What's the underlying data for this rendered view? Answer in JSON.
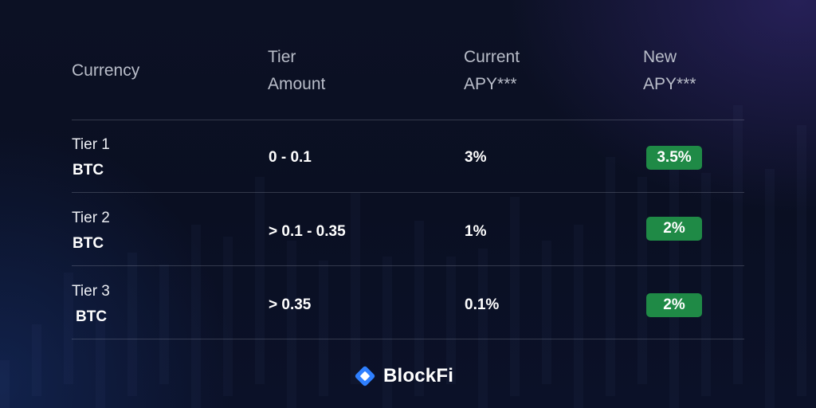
{
  "headers": {
    "currency": "Currency",
    "tier_amount_line1": "Tier",
    "tier_amount_line2": "Amount",
    "current_apy_line1": "Current",
    "current_apy_line2": "APY***",
    "new_apy_line1": "New",
    "new_apy_line2": "APY***"
  },
  "rows": [
    {
      "tier": "Tier 1",
      "currency": "BTC",
      "amount": "0 - 0.1",
      "current_apy": "3%",
      "new_apy": "3.5%"
    },
    {
      "tier": "Tier 2",
      "currency": "BTC",
      "amount": "> 0.1 - 0.35",
      "current_apy": "1%",
      "new_apy": "2%"
    },
    {
      "tier": "Tier 3",
      "currency": "BTC",
      "amount": "> 0.35",
      "current_apy": "0.1%",
      "new_apy": "2%"
    }
  ],
  "brand": {
    "name": "BlockFi",
    "icon": "blockfi-logo-icon"
  },
  "colors": {
    "background": "#0b1020",
    "badge_green": "#1f8a46",
    "logo_blue": "#2f80ff",
    "header_text": "#b9bdc9"
  }
}
